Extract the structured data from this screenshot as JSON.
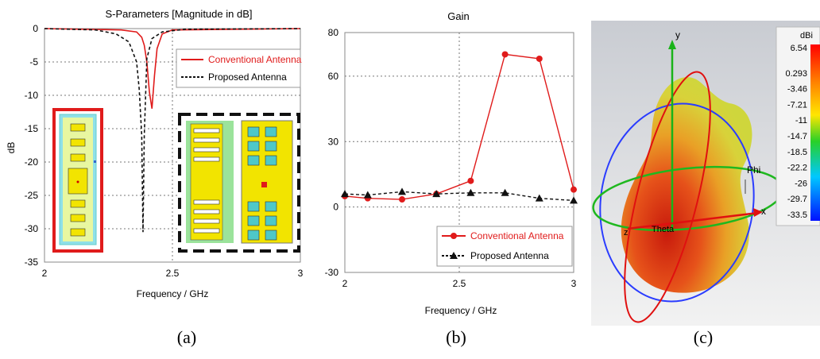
{
  "captions": {
    "a": "(a)",
    "b": "(b)",
    "c": "(c)"
  },
  "chart_data": [
    {
      "type": "line",
      "title": "S-Parameters [Magnitude in dB]",
      "xlabel": "Frequency / GHz",
      "ylabel": "dB",
      "xlim": [
        2,
        3
      ],
      "ylim": [
        -35,
        0
      ],
      "xticks": [
        "2",
        "2.5",
        "3"
      ],
      "yticks": [
        "0",
        "-5",
        "-10",
        "-15",
        "-20",
        "-25",
        "-30",
        "-35"
      ],
      "grid": true,
      "legend": "top-right",
      "series": [
        {
          "name": "Conventional Antenna",
          "color": "#e01b1b",
          "style": "solid",
          "x": [
            2.0,
            2.3,
            2.36,
            2.38,
            2.39,
            2.4,
            2.41,
            2.42,
            2.43,
            2.44,
            2.46,
            2.5,
            3.0
          ],
          "y": [
            0,
            -0.2,
            -0.5,
            -1.3,
            -2.5,
            -5.0,
            -9.5,
            -12.0,
            -7.0,
            -3.0,
            -0.8,
            -0.2,
            0
          ]
        },
        {
          "name": "Proposed Antenna",
          "color": "#111111",
          "style": "dashed",
          "x": [
            2.0,
            2.2,
            2.28,
            2.33,
            2.36,
            2.37,
            2.38,
            2.385,
            2.39,
            2.4,
            2.42,
            2.46,
            2.55,
            3.0
          ],
          "y": [
            0,
            -0.2,
            -0.8,
            -2.0,
            -5.0,
            -9.0,
            -16.0,
            -30.5,
            -16.0,
            -4.5,
            -1.5,
            -0.5,
            -0.1,
            0
          ]
        }
      ]
    },
    {
      "type": "line",
      "title": "Gain",
      "xlabel": "Frequency / GHz",
      "ylabel": "",
      "xlim": [
        2,
        3
      ],
      "ylim": [
        -30,
        80
      ],
      "xticks": [
        "2",
        "2.5",
        "3"
      ],
      "yticks": [
        "80",
        "60",
        "30",
        "0",
        "-30"
      ],
      "grid": true,
      "legend": "bottom-right",
      "series": [
        {
          "name": "Conventional Antenna",
          "color": "#e01b1b",
          "marker": "circle",
          "x": [
            2.0,
            2.1,
            2.25,
            2.4,
            2.55,
            2.7,
            2.85,
            3.0
          ],
          "y": [
            5,
            4,
            3.5,
            6,
            12,
            70,
            68,
            8
          ]
        },
        {
          "name": "Proposed Antenna",
          "color": "#111111",
          "marker": "triangle",
          "style": "dashed",
          "x": [
            2.0,
            2.1,
            2.25,
            2.4,
            2.55,
            2.7,
            2.85,
            3.0
          ],
          "y": [
            6,
            5.5,
            7,
            6,
            6.5,
            6.5,
            4,
            3
          ]
        }
      ]
    },
    {
      "type": "heatmap",
      "title": "",
      "colorbar_unit": "dBi",
      "colorbar_ticks": [
        "6.54",
        "0.293",
        "-3.46",
        "-7.21",
        "-11",
        "-14.7",
        "-18.5",
        "-22.2",
        "-26",
        "-29.7",
        "-33.5"
      ],
      "axis_labels": {
        "y": "y",
        "x": "x",
        "phi": "Phi",
        "theta": "Theta",
        "z": "z"
      }
    }
  ]
}
